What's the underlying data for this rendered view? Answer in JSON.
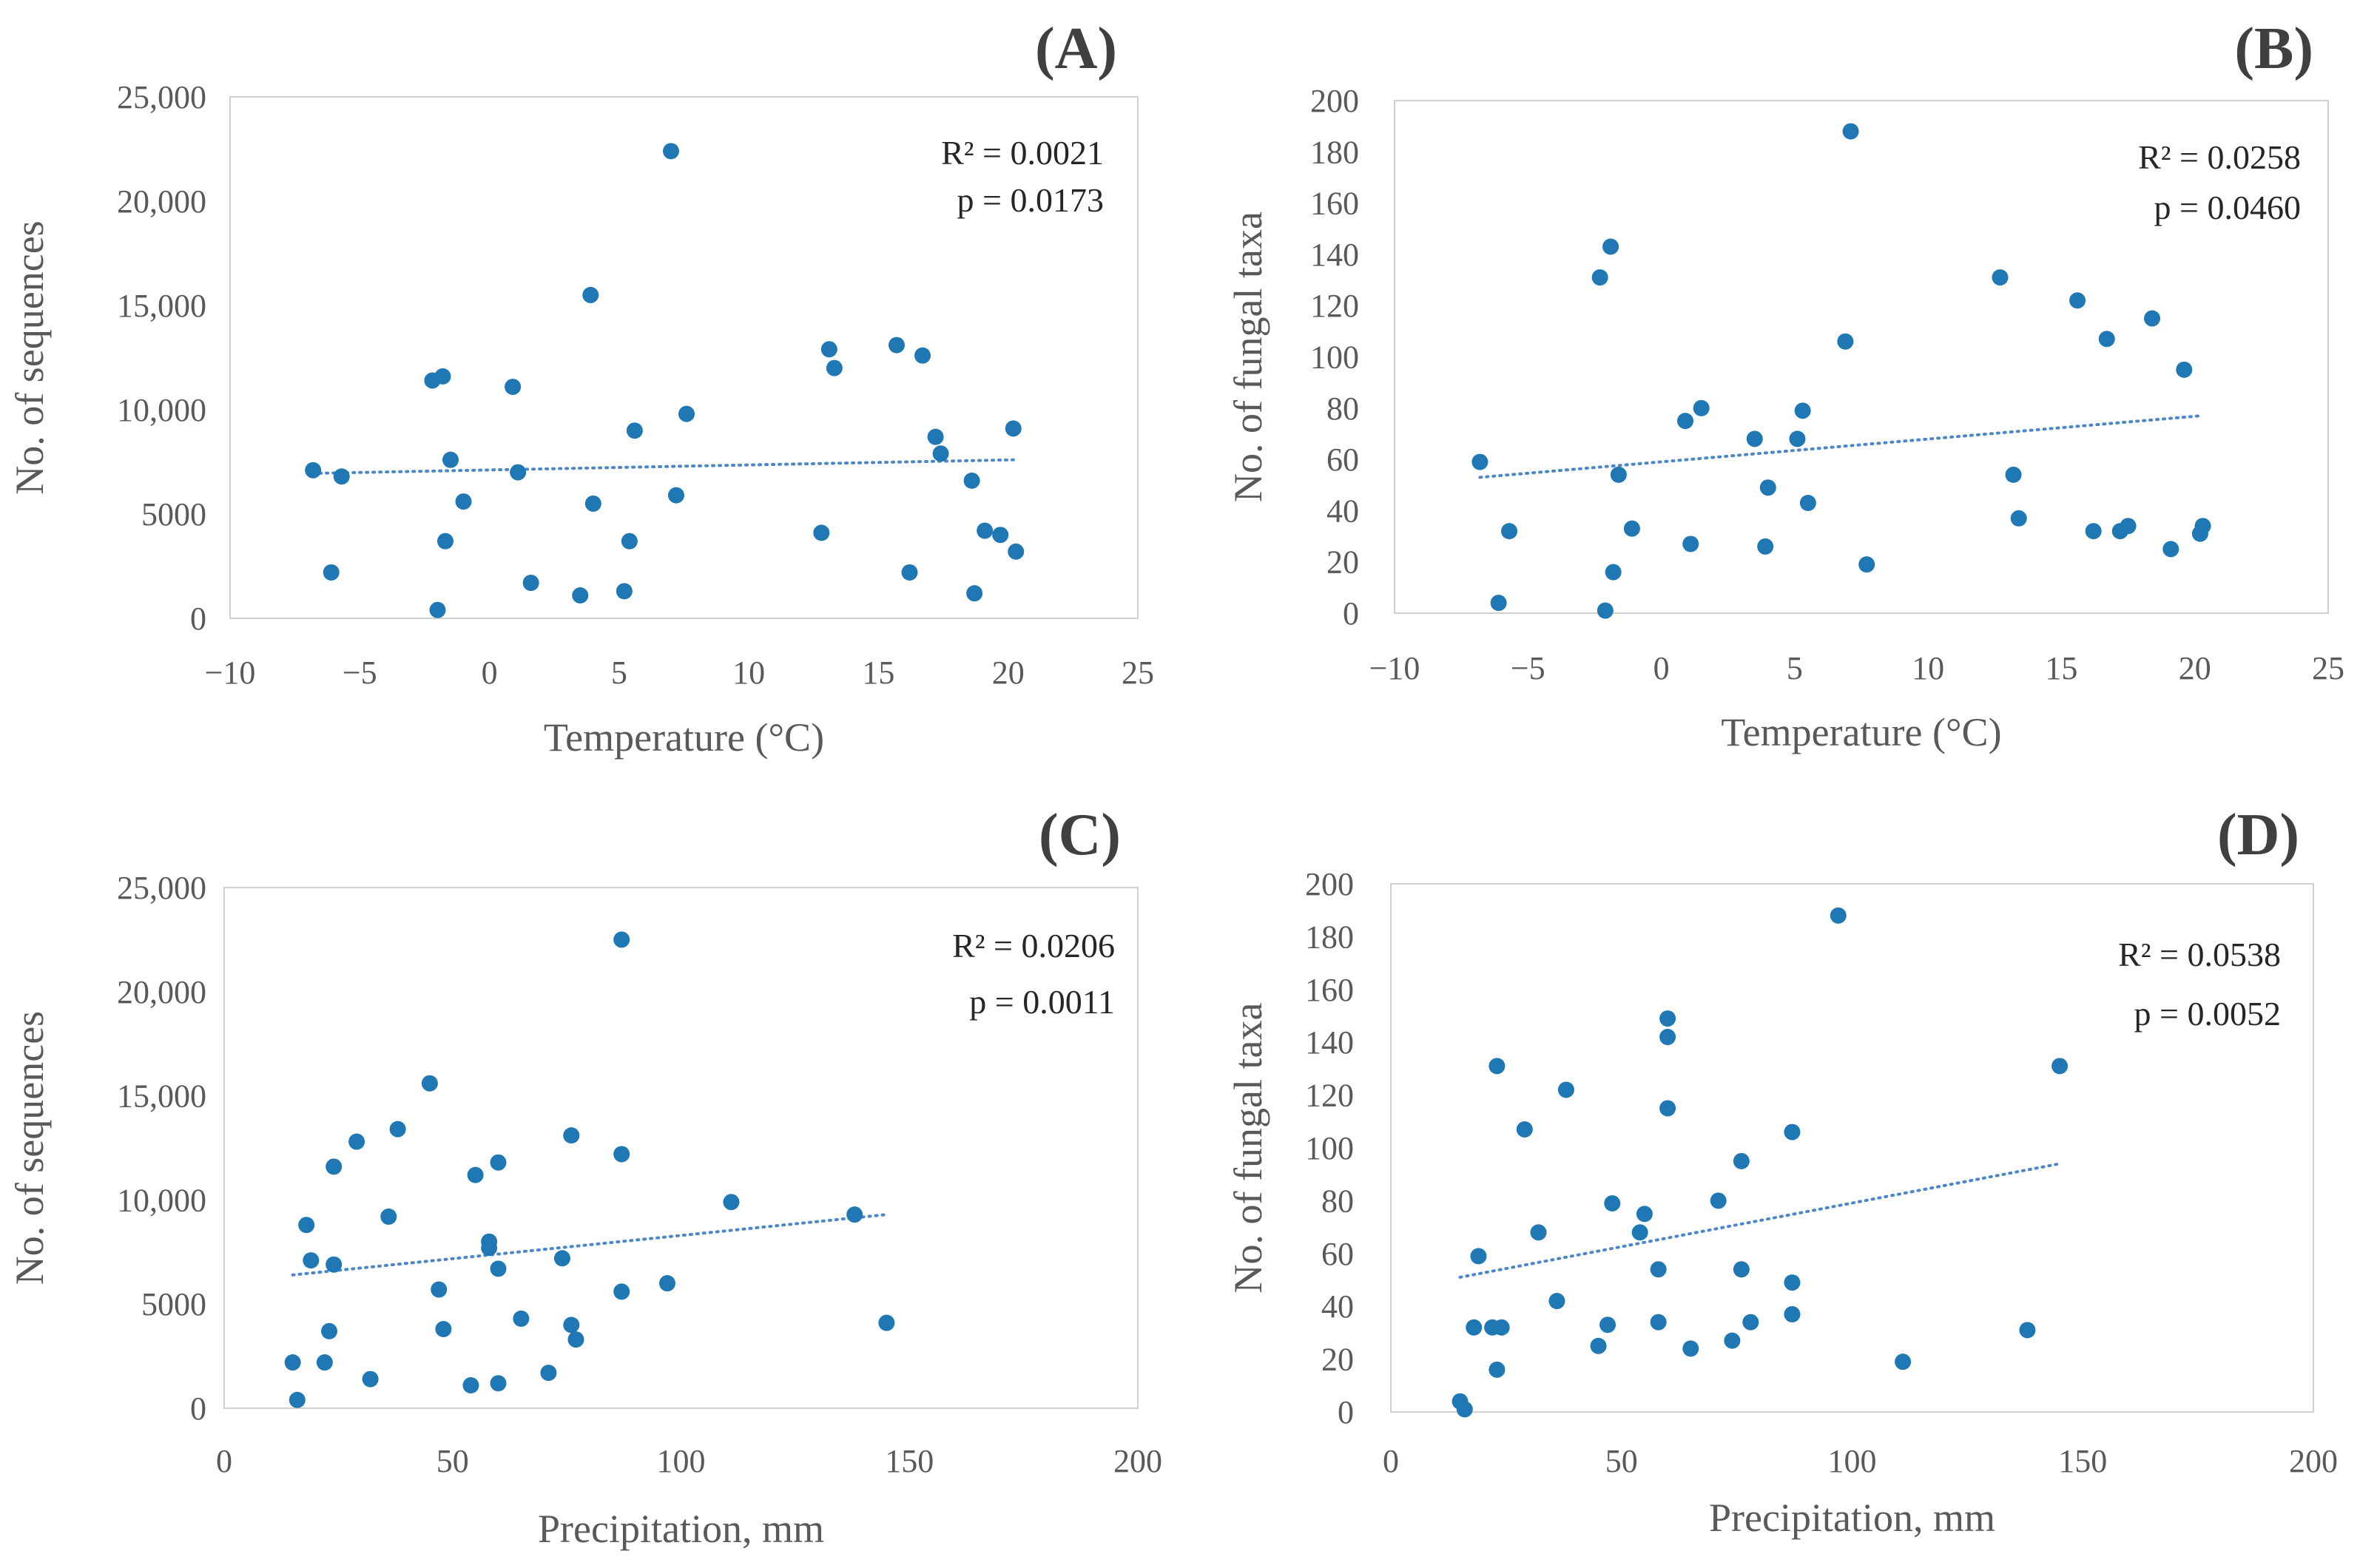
{
  "colors": {
    "marker": "#1f77b4",
    "trendline": "#4a86c8",
    "frame": "#d0d0d0",
    "text": "#595959"
  },
  "chart_data": [
    {
      "type": "scatter",
      "panel_label": "(A)",
      "xlabel": "Temperature (°C)",
      "ylabel": "No. of sequences",
      "xlim": [
        -10,
        25
      ],
      "ylim": [
        0,
        25000
      ],
      "xticks": [
        -10,
        -5,
        0,
        5,
        10,
        15,
        20,
        25
      ],
      "xtick_labels": [
        "−10",
        "−5",
        "0",
        "5",
        "10",
        "15",
        "20",
        "25"
      ],
      "yticks": [
        0,
        5000,
        10000,
        15000,
        20000,
        25000
      ],
      "ytick_labels": [
        "0",
        "5000",
        "10,000",
        "15,000",
        "20,000",
        "25,000"
      ],
      "grid": false,
      "r2": "R² = 0.0021",
      "p": "p = 0.0173",
      "trendline": {
        "style": "dotted",
        "x": [
          -6.8,
          20.2
        ],
        "y": [
          6950,
          7600
        ]
      },
      "points": [
        {
          "x": -6.8,
          "y": 7100
        },
        {
          "x": -6.1,
          "y": 2200
        },
        {
          "x": -5.7,
          "y": 6800
        },
        {
          "x": -2.2,
          "y": 11400
        },
        {
          "x": -2.0,
          "y": 400
        },
        {
          "x": -1.8,
          "y": 11600
        },
        {
          "x": -1.7,
          "y": 3700
        },
        {
          "x": -1.5,
          "y": 7600
        },
        {
          "x": -1.0,
          "y": 5600
        },
        {
          "x": 0.9,
          "y": 11100
        },
        {
          "x": 1.1,
          "y": 7000
        },
        {
          "x": 1.6,
          "y": 1700
        },
        {
          "x": 3.5,
          "y": 1100
        },
        {
          "x": 3.9,
          "y": 15500
        },
        {
          "x": 4.0,
          "y": 5500
        },
        {
          "x": 5.2,
          "y": 1300
        },
        {
          "x": 5.4,
          "y": 3700
        },
        {
          "x": 5.6,
          "y": 9000
        },
        {
          "x": 7.0,
          "y": 22400
        },
        {
          "x": 7.2,
          "y": 5900
        },
        {
          "x": 7.6,
          "y": 9800
        },
        {
          "x": 12.8,
          "y": 4100
        },
        {
          "x": 13.1,
          "y": 12900
        },
        {
          "x": 13.3,
          "y": 12000
        },
        {
          "x": 15.7,
          "y": 13100
        },
        {
          "x": 16.2,
          "y": 2200
        },
        {
          "x": 16.7,
          "y": 12600
        },
        {
          "x": 17.2,
          "y": 8700
        },
        {
          "x": 17.4,
          "y": 7900
        },
        {
          "x": 18.6,
          "y": 6600
        },
        {
          "x": 18.7,
          "y": 1200
        },
        {
          "x": 19.1,
          "y": 4200
        },
        {
          "x": 19.7,
          "y": 4000
        },
        {
          "x": 20.2,
          "y": 9100
        },
        {
          "x": 20.3,
          "y": 3200
        }
      ]
    },
    {
      "type": "scatter",
      "panel_label": "(B)",
      "xlabel": "Temperature (°C)",
      "ylabel": "No. of fungal taxa",
      "xlim": [
        -10,
        25
      ],
      "ylim": [
        0,
        200
      ],
      "xticks": [
        -10,
        -5,
        0,
        5,
        10,
        15,
        20,
        25
      ],
      "xtick_labels": [
        "−10",
        "−5",
        "0",
        "5",
        "10",
        "15",
        "20",
        "25"
      ],
      "yticks": [
        0,
        20,
        40,
        60,
        80,
        100,
        120,
        140,
        160,
        180,
        200
      ],
      "ytick_labels": [
        "0",
        "20",
        "40",
        "60",
        "80",
        "100",
        "120",
        "140",
        "160",
        "180",
        "200"
      ],
      "grid": false,
      "r2": "R² = 0.0258",
      "p": "p = 0.0460",
      "trendline": {
        "style": "dotted",
        "x": [
          -6.8,
          20.2
        ],
        "y": [
          53,
          77
        ]
      },
      "points": [
        {
          "x": -6.8,
          "y": 59
        },
        {
          "x": -6.1,
          "y": 4
        },
        {
          "x": -5.7,
          "y": 32
        },
        {
          "x": -2.3,
          "y": 131
        },
        {
          "x": -2.1,
          "y": 1
        },
        {
          "x": -1.9,
          "y": 143
        },
        {
          "x": -1.8,
          "y": 16
        },
        {
          "x": -1.6,
          "y": 54
        },
        {
          "x": -1.1,
          "y": 33
        },
        {
          "x": 0.9,
          "y": 75
        },
        {
          "x": 1.1,
          "y": 27
        },
        {
          "x": 1.5,
          "y": 80
        },
        {
          "x": 3.5,
          "y": 68
        },
        {
          "x": 3.9,
          "y": 26
        },
        {
          "x": 4.0,
          "y": 49
        },
        {
          "x": 5.1,
          "y": 68
        },
        {
          "x": 5.3,
          "y": 79
        },
        {
          "x": 5.5,
          "y": 43
        },
        {
          "x": 6.9,
          "y": 106
        },
        {
          "x": 7.1,
          "y": 188
        },
        {
          "x": 7.7,
          "y": 19
        },
        {
          "x": 12.7,
          "y": 131
        },
        {
          "x": 13.2,
          "y": 54
        },
        {
          "x": 13.4,
          "y": 37
        },
        {
          "x": 15.6,
          "y": 122
        },
        {
          "x": 16.2,
          "y": 32
        },
        {
          "x": 16.7,
          "y": 107
        },
        {
          "x": 17.2,
          "y": 32
        },
        {
          "x": 17.5,
          "y": 34
        },
        {
          "x": 18.4,
          "y": 115
        },
        {
          "x": 19.1,
          "y": 25
        },
        {
          "x": 19.6,
          "y": 95
        },
        {
          "x": 20.2,
          "y": 31
        },
        {
          "x": 20.3,
          "y": 34
        }
      ]
    },
    {
      "type": "scatter",
      "panel_label": "(C)",
      "xlabel": "Precipitation, mm",
      "ylabel": "No. of sequences",
      "xlim": [
        0,
        200
      ],
      "ylim": [
        0,
        25000
      ],
      "xticks": [
        0,
        50,
        100,
        150,
        200
      ],
      "xtick_labels": [
        "0",
        "50",
        "100",
        "150",
        "200"
      ],
      "yticks": [
        0,
        5000,
        10000,
        15000,
        20000,
        25000
      ],
      "ytick_labels": [
        "0",
        "5000",
        "10,000",
        "15,000",
        "20,000",
        "25,000"
      ],
      "grid": false,
      "r2": "R² = 0.0206",
      "p": "p = 0.0011",
      "trendline": {
        "style": "dotted",
        "x": [
          15,
          145
        ],
        "y": [
          6400,
          9300
        ]
      },
      "points": [
        {
          "x": 15,
          "y": 2200
        },
        {
          "x": 16,
          "y": 400
        },
        {
          "x": 18,
          "y": 8800
        },
        {
          "x": 19,
          "y": 7100
        },
        {
          "x": 22,
          "y": 2200
        },
        {
          "x": 23,
          "y": 3700
        },
        {
          "x": 24,
          "y": 11600
        },
        {
          "x": 24,
          "y": 6900
        },
        {
          "x": 29,
          "y": 12800
        },
        {
          "x": 32,
          "y": 1400
        },
        {
          "x": 36,
          "y": 9200
        },
        {
          "x": 38,
          "y": 13400
        },
        {
          "x": 45,
          "y": 15600
        },
        {
          "x": 47,
          "y": 5700
        },
        {
          "x": 48,
          "y": 3800
        },
        {
          "x": 54,
          "y": 1100
        },
        {
          "x": 55,
          "y": 11200
        },
        {
          "x": 58,
          "y": 8000
        },
        {
          "x": 58,
          "y": 7700
        },
        {
          "x": 60,
          "y": 6700
        },
        {
          "x": 60,
          "y": 11800
        },
        {
          "x": 60,
          "y": 1200
        },
        {
          "x": 65,
          "y": 4300
        },
        {
          "x": 71,
          "y": 1700
        },
        {
          "x": 74,
          "y": 7200
        },
        {
          "x": 76,
          "y": 4000
        },
        {
          "x": 76,
          "y": 13100
        },
        {
          "x": 77,
          "y": 3300
        },
        {
          "x": 87,
          "y": 22500
        },
        {
          "x": 87,
          "y": 12200
        },
        {
          "x": 87,
          "y": 5600
        },
        {
          "x": 97,
          "y": 6000
        },
        {
          "x": 111,
          "y": 9900
        },
        {
          "x": 138,
          "y": 9300
        },
        {
          "x": 145,
          "y": 4100
        }
      ]
    },
    {
      "type": "scatter",
      "panel_label": "(D)",
      "xlabel": "Precipitation, mm",
      "ylabel": "No. of fungal taxa",
      "xlim": [
        0,
        200
      ],
      "ylim": [
        0,
        200
      ],
      "xticks": [
        0,
        50,
        100,
        150,
        200
      ],
      "xtick_labels": [
        "0",
        "50",
        "100",
        "150",
        "200"
      ],
      "yticks": [
        0,
        20,
        40,
        60,
        80,
        100,
        120,
        140,
        160,
        180,
        200
      ],
      "ytick_labels": [
        "0",
        "20",
        "40",
        "60",
        "80",
        "100",
        "120",
        "140",
        "160",
        "180",
        "200"
      ],
      "grid": false,
      "r2": "R² = 0.0538",
      "p": "p = 0.0052",
      "trendline": {
        "style": "dotted",
        "x": [
          15,
          145
        ],
        "y": [
          51,
          94
        ]
      },
      "points": [
        {
          "x": 15,
          "y": 4
        },
        {
          "x": 16,
          "y": 1
        },
        {
          "x": 18,
          "y": 32
        },
        {
          "x": 19,
          "y": 59
        },
        {
          "x": 22,
          "y": 32
        },
        {
          "x": 23,
          "y": 16
        },
        {
          "x": 23,
          "y": 131
        },
        {
          "x": 24,
          "y": 32
        },
        {
          "x": 29,
          "y": 107
        },
        {
          "x": 32,
          "y": 68
        },
        {
          "x": 36,
          "y": 42
        },
        {
          "x": 38,
          "y": 122
        },
        {
          "x": 45,
          "y": 25
        },
        {
          "x": 47,
          "y": 33
        },
        {
          "x": 48,
          "y": 79
        },
        {
          "x": 54,
          "y": 68
        },
        {
          "x": 55,
          "y": 75
        },
        {
          "x": 58,
          "y": 54
        },
        {
          "x": 58,
          "y": 34
        },
        {
          "x": 60,
          "y": 149
        },
        {
          "x": 60,
          "y": 142
        },
        {
          "x": 60,
          "y": 115
        },
        {
          "x": 65,
          "y": 24
        },
        {
          "x": 71,
          "y": 80
        },
        {
          "x": 74,
          "y": 27
        },
        {
          "x": 76,
          "y": 95
        },
        {
          "x": 76,
          "y": 54
        },
        {
          "x": 78,
          "y": 34
        },
        {
          "x": 87,
          "y": 106
        },
        {
          "x": 87,
          "y": 49
        },
        {
          "x": 87,
          "y": 37
        },
        {
          "x": 97,
          "y": 188
        },
        {
          "x": 111,
          "y": 19
        },
        {
          "x": 138,
          "y": 31
        },
        {
          "x": 145,
          "y": 131
        }
      ]
    }
  ]
}
